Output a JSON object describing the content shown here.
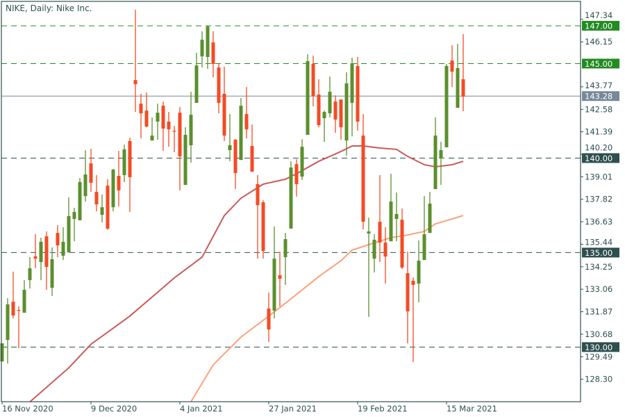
{
  "chart_data": {
    "type": "candlestick",
    "title": "NIKE, Daily:  Nike Inc.",
    "ylim": [
      127.11,
      148.29
    ],
    "grid": false,
    "colors": {
      "bull": "#5b8f2e",
      "bear": "#f44b24",
      "ma_fast": "#c85a5a",
      "ma_slow": "#fba27c",
      "level_major": "#228b22",
      "level_minor": "#2f4f4f",
      "current_price": "#778899",
      "axis": "#2f4f4f"
    },
    "y_ticks": [
      "147.34",
      "146.15",
      "143.77",
      "142.58",
      "141.39",
      "140.20",
      "139.01",
      "137.82",
      "136.63",
      "135.44",
      "134.25",
      "133.06",
      "131.87",
      "130.68",
      "129.49",
      "128.30"
    ],
    "x_ticks": [
      {
        "index": 0,
        "label": "16 Nov 2020"
      },
      {
        "index": 16,
        "label": "9 Dec 2020"
      },
      {
        "index": 32,
        "label": "4 Jan 2021"
      },
      {
        "index": 48,
        "label": "27 Jan 2021"
      },
      {
        "index": 64,
        "label": "19 Feb 2021"
      },
      {
        "index": 80,
        "label": "15 Mar 2021"
      }
    ],
    "levels": [
      {
        "value": 147.0,
        "label": "147.00",
        "kind": "major"
      },
      {
        "value": 145.0,
        "label": "145.00",
        "kind": "major"
      },
      {
        "value": 140.0,
        "label": "140.00",
        "kind": "minor"
      },
      {
        "value": 135.0,
        "label": "135.00",
        "kind": "minor"
      },
      {
        "value": 130.0,
        "label": "130.00",
        "kind": "minor"
      }
    ],
    "current_price": {
      "value": 143.28,
      "label": "143.28"
    },
    "candles_ohlc": [
      [
        129.24,
        130.2,
        129.24,
        130.2
      ],
      [
        130.38,
        132.59,
        129.13,
        132.26
      ],
      [
        132.4,
        133.99,
        131.52,
        131.67
      ],
      [
        131.96,
        132.15,
        129.94,
        131.96
      ],
      [
        131.82,
        133.54,
        131.82,
        133.03
      ],
      [
        133.54,
        134.76,
        133.1,
        134.17
      ],
      [
        134.8,
        135.97,
        134.17,
        134.68
      ],
      [
        134.5,
        135.79,
        133.54,
        135.57
      ],
      [
        135.86,
        136.12,
        133.03,
        134.24
      ],
      [
        133.14,
        135.27,
        132.7,
        134.65
      ],
      [
        136.04,
        136.45,
        134.76,
        135.38
      ],
      [
        134.83,
        136.34,
        134.61,
        135.57
      ],
      [
        135.01,
        137.92,
        135.01,
        136.93
      ],
      [
        136.78,
        137.37,
        135.6,
        137.15
      ],
      [
        136.71,
        138.95,
        136.71,
        138.73
      ],
      [
        137.99,
        140.42,
        137.7,
        139.13
      ],
      [
        139.72,
        140.49,
        138.21,
        138.69
      ],
      [
        138.21,
        139.1,
        137.18,
        137.55
      ],
      [
        137.0,
        138.07,
        136.6,
        137.4
      ],
      [
        138.54,
        138.88,
        136.2,
        136.27
      ],
      [
        137.4,
        139.43,
        137.18,
        139.39
      ],
      [
        139.06,
        140.38,
        137.44,
        138.29
      ],
      [
        139.1,
        140.71,
        138.73,
        140.46
      ],
      [
        140.9,
        141.08,
        137.15,
        138.99
      ],
      [
        144.13,
        147.85,
        142.44,
        143.91
      ],
      [
        142.88,
        143.4,
        141.04,
        142.37
      ],
      [
        142.51,
        143.47,
        141.63,
        141.67
      ],
      [
        140.93,
        142.15,
        140.93,
        141.19
      ],
      [
        141.93,
        142.88,
        140.97,
        142.4
      ],
      [
        142.77,
        142.99,
        140.38,
        141.56
      ],
      [
        141.93,
        142.44,
        140.6,
        141.52
      ],
      [
        141.45,
        141.7,
        140.31,
        141.45
      ],
      [
        142.4,
        142.7,
        138.29,
        140.09
      ],
      [
        138.58,
        141.63,
        138.58,
        141.23
      ],
      [
        140.68,
        143.51,
        139.76,
        142.29
      ],
      [
        142.92,
        145.57,
        142.92,
        144.9
      ],
      [
        145.38,
        146.71,
        144.79,
        146.26
      ],
      [
        145.35,
        147.0,
        144.72,
        146.96
      ],
      [
        146.12,
        146.71,
        144.28,
        144.98
      ],
      [
        144.79,
        145.0,
        142.37,
        142.92
      ],
      [
        143.4,
        144.83,
        140.9,
        141.19
      ],
      [
        140.42,
        142.33,
        139.83,
        140.68
      ],
      [
        140.97,
        141.0,
        138.36,
        139.21
      ],
      [
        139.9,
        143.18,
        139.9,
        142.77
      ],
      [
        142.33,
        143.76,
        141.04,
        141.52
      ],
      [
        140.64,
        141.78,
        139.28,
        139.28
      ],
      [
        138.62,
        139.1,
        134.68,
        137.51
      ],
      [
        137.66,
        137.77,
        134.68,
        135.09
      ],
      [
        132.04,
        132.88,
        130.27,
        130.93
      ],
      [
        131.93,
        136.38,
        131.52,
        134.68
      ],
      [
        133.8,
        135.05,
        132.15,
        133.62
      ],
      [
        134.76,
        136.04,
        133.29,
        135.71
      ],
      [
        136.27,
        139.83,
        136.27,
        139.5
      ],
      [
        139.68,
        139.94,
        137.96,
        138.62
      ],
      [
        139.02,
        141.0,
        138.84,
        140.6
      ],
      [
        141.23,
        145.49,
        141.23,
        145.13
      ],
      [
        144.98,
        145.42,
        142.74,
        143.29
      ],
      [
        143.36,
        144.17,
        141.63,
        141.74
      ],
      [
        142.11,
        142.51,
        140.86,
        142.44
      ],
      [
        142.37,
        144.32,
        142.15,
        143.51
      ],
      [
        142.99,
        143.32,
        141.34,
        142.04
      ],
      [
        143.1,
        143.1,
        140.97,
        141.63
      ],
      [
        140.93,
        144.54,
        140.13,
        143.95
      ],
      [
        142.92,
        145.31,
        141.15,
        145.01
      ],
      [
        144.87,
        145.35,
        141.45,
        141.93
      ],
      [
        141.19,
        142.33,
        136.23,
        136.63
      ],
      [
        136.01,
        136.85,
        131.6,
        136.12
      ],
      [
        134.68,
        135.97,
        133.95,
        135.68
      ],
      [
        136.63,
        139.1,
        134.5,
        135.53
      ],
      [
        135.53,
        136.34,
        133.36,
        134.79
      ],
      [
        135.6,
        139.17,
        135.6,
        137.7
      ],
      [
        136.78,
        138.18,
        135.6,
        137.04
      ],
      [
        136.74,
        137.33,
        134.13,
        134.21
      ],
      [
        133.91,
        135.05,
        130.2,
        131.89
      ],
      [
        133.51,
        133.69,
        129.21,
        133.29
      ],
      [
        133.36,
        135.64,
        132.37,
        134.57
      ],
      [
        134.61,
        137.99,
        134.61,
        135.97
      ],
      [
        136.04,
        138.21,
        136.04,
        137.59
      ],
      [
        138.36,
        142.15,
        138.36,
        141.19
      ],
      [
        139.98,
        140.86,
        138.58,
        140.42
      ],
      [
        140.57,
        144.98,
        140.57,
        144.87
      ],
      [
        145.16,
        145.97,
        143.76,
        144.57
      ],
      [
        142.66,
        146.04,
        142.66,
        144.76
      ],
      [
        144.17,
        146.56,
        142.48,
        143.25
      ]
    ],
    "moving_averages": [
      {
        "kind": "fast",
        "points": [
          [
            5,
            127.1
          ],
          [
            12,
            128.9
          ],
          [
            16,
            130.15
          ],
          [
            23,
            131.64
          ],
          [
            31,
            133.66
          ],
          [
            36,
            134.76
          ],
          [
            40,
            136.96
          ],
          [
            43,
            137.88
          ],
          [
            47,
            138.62
          ],
          [
            51,
            138.88
          ],
          [
            53,
            139.17
          ],
          [
            57,
            139.83
          ],
          [
            61,
            140.35
          ],
          [
            63,
            140.64
          ],
          [
            65,
            140.64
          ],
          [
            68,
            140.53
          ],
          [
            71,
            140.46
          ],
          [
            73,
            140.09
          ],
          [
            76,
            139.65
          ],
          [
            78,
            139.54
          ],
          [
            81,
            139.65
          ],
          [
            83,
            139.83
          ]
        ]
      },
      {
        "kind": "slow",
        "points": [
          [
            34,
            127.11
          ],
          [
            38,
            129.06
          ],
          [
            43,
            130.53
          ],
          [
            48,
            131.64
          ],
          [
            52,
            132.55
          ],
          [
            57,
            133.73
          ],
          [
            61,
            134.57
          ],
          [
            63,
            135.13
          ],
          [
            66,
            135.42
          ],
          [
            70,
            135.79
          ],
          [
            73,
            135.93
          ],
          [
            76,
            136.12
          ],
          [
            78,
            136.52
          ],
          [
            81,
            136.78
          ],
          [
            83,
            136.96
          ]
        ]
      }
    ]
  }
}
